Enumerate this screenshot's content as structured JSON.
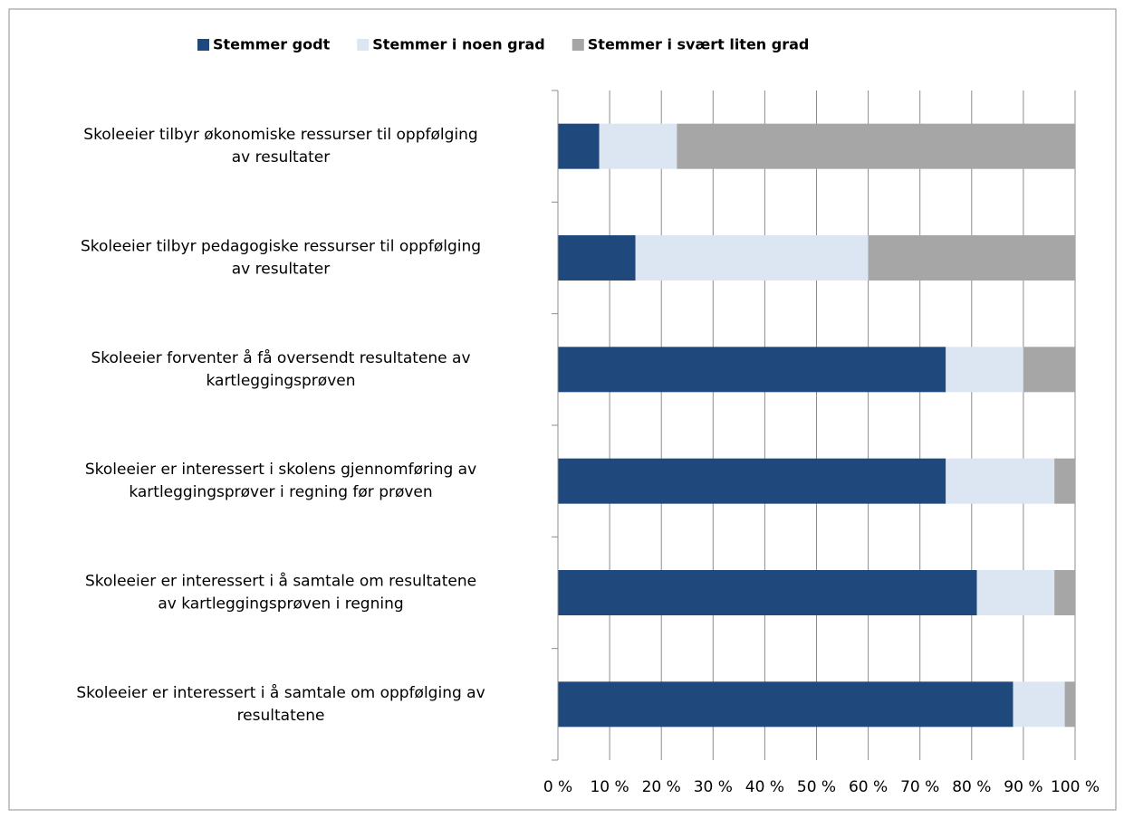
{
  "chart_data": {
    "type": "stacked_barh",
    "categories": [
      [
        "Skoleeier tilbyr økonomiske ressurser til oppfølging",
        "av resultater"
      ],
      [
        "Skoleeier tilbyr pedagogiske ressurser til oppfølging",
        "av resultater"
      ],
      [
        "Skoleeier forventer å få oversendt resultatene av",
        "kartleggingsprøven"
      ],
      [
        "Skoleeier er interessert i skolens gjennomføring av",
        "kartleggingsprøver i regning før prøven"
      ],
      [
        "Skoleeier er interessert i å samtale om resultatene",
        "av kartleggingsprøven i regning"
      ],
      [
        "Skoleeier er interessert i å samtale om oppfølging av",
        "resultatene"
      ]
    ],
    "series": [
      {
        "name": "Stemmer godt",
        "color": "#1f497d",
        "values": [
          8,
          15,
          75,
          75,
          81,
          88
        ]
      },
      {
        "name": "Stemmer i noen grad",
        "color": "#dce6f2",
        "values": [
          15,
          45,
          15,
          21,
          15,
          10
        ]
      },
      {
        "name": "Stemmer i svært liten grad",
        "color": "#a6a6a6",
        "values": [
          77,
          40,
          10,
          4,
          4,
          2
        ]
      }
    ],
    "xlim": [
      0,
      100
    ],
    "xticks": [
      {
        "value": 0,
        "label": "0 %"
      },
      {
        "value": 10,
        "label": "10 %"
      },
      {
        "value": 20,
        "label": "20 %"
      },
      {
        "value": 30,
        "label": "30 %"
      },
      {
        "value": 40,
        "label": "40 %"
      },
      {
        "value": 50,
        "label": "50 %"
      },
      {
        "value": 60,
        "label": "60 %"
      },
      {
        "value": 70,
        "label": "70 %"
      },
      {
        "value": 80,
        "label": "80 %"
      },
      {
        "value": 90,
        "label": "90 %"
      },
      {
        "value": 100,
        "label": "100 %"
      }
    ],
    "grid": true,
    "legend": "top"
  }
}
